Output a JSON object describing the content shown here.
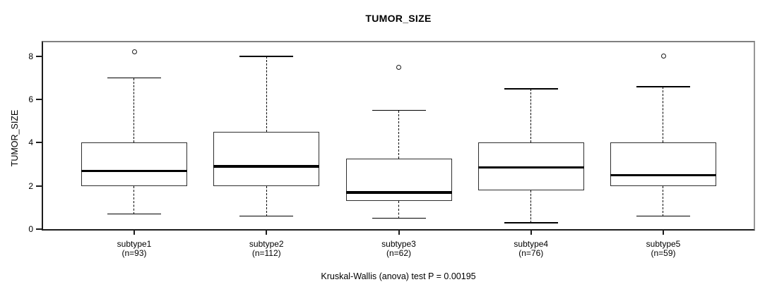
{
  "title": "TUMOR_SIZE",
  "caption": "Kruskal-Wallis (anova) test P = 0.00195",
  "colors": {
    "foreground": "#000000",
    "frame_gray": "#808080",
    "background": "#ffffff"
  },
  "chart_data": {
    "type": "boxplot",
    "title": "TUMOR_SIZE",
    "xlabel": "",
    "ylabel": "TUMOR_SIZE",
    "ylim": [
      0,
      8.65
    ],
    "yticks": [
      0,
      2,
      4,
      6,
      8
    ],
    "ytick_labels": [
      "0",
      "2",
      "4",
      "6",
      "8"
    ],
    "grid": false,
    "legend": "none",
    "annotation": "Kruskal-Wallis (anova) test P = 0.00195",
    "categories": [
      "subtype1",
      "subtype2",
      "subtype3",
      "subtype4",
      "subtype5"
    ],
    "series": [
      {
        "name": "subtype1",
        "n": 93,
        "count_label": "(n=93)",
        "whisker_low": 0.7,
        "q1": 2.0,
        "median": 2.7,
        "q3": 4.0,
        "whisker_high": 7.0,
        "outliers": [
          8.2
        ]
      },
      {
        "name": "subtype2",
        "n": 112,
        "count_label": "(n=112)",
        "whisker_low": 0.6,
        "q1": 2.0,
        "median": 2.9,
        "q3": 4.5,
        "whisker_high": 8.0,
        "outliers": []
      },
      {
        "name": "subtype3",
        "n": 62,
        "count_label": "(n=62)",
        "whisker_low": 0.5,
        "q1": 1.3,
        "median": 1.7,
        "q3": 3.25,
        "whisker_high": 5.5,
        "outliers": [
          7.5
        ]
      },
      {
        "name": "subtype4",
        "n": 76,
        "count_label": "(n=76)",
        "whisker_low": 0.3,
        "q1": 1.8,
        "median": 2.85,
        "q3": 4.0,
        "whisker_high": 6.5,
        "outliers": []
      },
      {
        "name": "subtype5",
        "n": 59,
        "count_label": "(n=59)",
        "whisker_low": 0.6,
        "q1": 2.0,
        "median": 2.5,
        "q3": 4.0,
        "whisker_high": 6.6,
        "outliers": [
          8.0
        ]
      }
    ]
  }
}
